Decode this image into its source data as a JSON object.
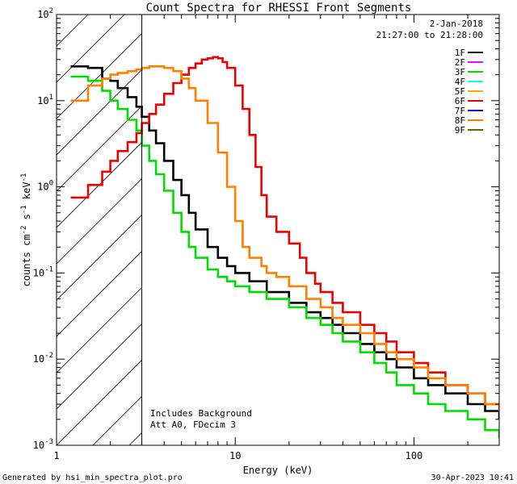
{
  "chart_data": {
    "type": "line",
    "title": "Count Spectra for RHESSI Front Segments",
    "xlabel": "Energy (keV)",
    "ylabel_base": "counts cm",
    "ylabel_exp1": "-2",
    "ylabel_mid": " s",
    "ylabel_exp2": "-1",
    "ylabel_end": " keV",
    "ylabel_exp3": "-1",
    "xscale": "log",
    "yscale": "log",
    "xlim": [
      1,
      300
    ],
    "ylim": [
      0.001,
      100
    ],
    "x_ticks": [
      {
        "value": 1,
        "label": "1"
      },
      {
        "value": 10,
        "label": "10"
      },
      {
        "value": 100,
        "label": "100"
      }
    ],
    "y_ticks": [
      {
        "value": 100,
        "base": "10",
        "exp": "2"
      },
      {
        "value": 10,
        "base": "10",
        "exp": "1"
      },
      {
        "value": 1,
        "base": "10",
        "exp": "0"
      },
      {
        "value": 0.1,
        "base": "10",
        "exp": "-1"
      },
      {
        "value": 0.01,
        "base": "10",
        "exp": "-2"
      },
      {
        "value": 0.001,
        "base": "10",
        "exp": "-3"
      }
    ],
    "shaded_region_below_keV": 3,
    "legend_position": "top-right",
    "date": "2-Jan-2018",
    "time_range": "21:27:00 to 21:28:00",
    "annotations": [
      "Includes Background",
      "Att A0, FDecim 3"
    ],
    "series": [
      {
        "name": "1F",
        "color": "#000000",
        "x": [
          1.2,
          1.5,
          1.8,
          2.0,
          2.2,
          2.5,
          2.8,
          3.0,
          3.3,
          3.6,
          4.0,
          4.5,
          5.0,
          5.5,
          6.0,
          7.0,
          8.0,
          9.0,
          10,
          12,
          15,
          20,
          25,
          30,
          35,
          40,
          50,
          60,
          70,
          80,
          100,
          120,
          150,
          200,
          250,
          300
        ],
        "y": [
          25,
          24,
          18,
          17,
          14,
          11,
          8.5,
          6.5,
          4.5,
          3.2,
          2.0,
          1.2,
          0.8,
          0.5,
          0.32,
          0.2,
          0.15,
          0.12,
          0.1,
          0.08,
          0.06,
          0.045,
          0.035,
          0.03,
          0.025,
          0.02,
          0.015,
          0.012,
          0.01,
          0.008,
          0.006,
          0.005,
          0.004,
          0.003,
          0.0025,
          0.002
        ]
      },
      {
        "name": "2F",
        "color": "#ff00ff",
        "x": [],
        "y": []
      },
      {
        "name": "3F",
        "color": "#00dd00",
        "x": [
          1.2,
          1.5,
          1.8,
          2.0,
          2.2,
          2.5,
          2.8,
          3.0,
          3.3,
          3.6,
          4.0,
          4.5,
          5.0,
          5.5,
          6.0,
          7.0,
          8.0,
          9.0,
          10,
          12,
          15,
          20,
          25,
          30,
          35,
          40,
          50,
          60,
          70,
          80,
          100,
          120,
          150,
          200,
          250,
          300
        ],
        "y": [
          19,
          17,
          13,
          10,
          8,
          6,
          4.5,
          3,
          2.0,
          1.4,
          0.9,
          0.5,
          0.3,
          0.2,
          0.15,
          0.11,
          0.09,
          0.08,
          0.07,
          0.06,
          0.05,
          0.04,
          0.03,
          0.025,
          0.02,
          0.016,
          0.012,
          0.009,
          0.007,
          0.005,
          0.004,
          0.003,
          0.0025,
          0.002,
          0.0015,
          0.0012
        ]
      },
      {
        "name": "4F",
        "color": "#00ffff",
        "x": [],
        "y": []
      },
      {
        "name": "5F",
        "color": "#ffaa00",
        "x": [],
        "y": []
      },
      {
        "name": "6F",
        "color": "#ee0000",
        "x": [
          1.2,
          1.5,
          1.8,
          2.0,
          2.2,
          2.5,
          2.8,
          3.0,
          3.3,
          3.6,
          4.0,
          4.5,
          5.0,
          5.5,
          6.0,
          6.5,
          7.0,
          7.5,
          8.0,
          8.5,
          9.0,
          10,
          11,
          12,
          13,
          14,
          15,
          17,
          20,
          23,
          25,
          28,
          30,
          35,
          40,
          50,
          60,
          70,
          80,
          100,
          120,
          150,
          200,
          250,
          300
        ],
        "y": [
          0.75,
          1.05,
          1.5,
          2.0,
          2.6,
          3.3,
          4.2,
          5.5,
          7,
          9,
          12,
          16,
          20,
          24,
          27,
          30,
          31,
          32,
          31,
          28,
          24,
          15,
          8,
          4,
          1.7,
          0.8,
          0.45,
          0.3,
          0.22,
          0.15,
          0.1,
          0.075,
          0.06,
          0.045,
          0.035,
          0.025,
          0.02,
          0.016,
          0.012,
          0.009,
          0.007,
          0.005,
          0.004,
          0.003,
          0.0025
        ]
      },
      {
        "name": "7F",
        "color": "#0000cc",
        "x": [],
        "y": []
      },
      {
        "name": "8F",
        "color": "#ff8000",
        "x": [
          1.2,
          1.5,
          1.8,
          2.0,
          2.2,
          2.5,
          2.8,
          3.0,
          3.3,
          3.6,
          4.0,
          4.5,
          5.0,
          5.5,
          6.0,
          7.0,
          8.0,
          9.0,
          10,
          11,
          12,
          14,
          15,
          17,
          20,
          25,
          30,
          35,
          40,
          50,
          60,
          70,
          80,
          100,
          120,
          150,
          200,
          250,
          300
        ],
        "y": [
          10,
          15,
          18,
          20,
          21,
          22,
          23,
          24,
          25,
          25,
          24,
          22,
          18,
          14,
          10,
          5.5,
          2.5,
          1.0,
          0.4,
          0.2,
          0.15,
          0.12,
          0.1,
          0.09,
          0.07,
          0.05,
          0.04,
          0.03,
          0.025,
          0.02,
          0.015,
          0.012,
          0.01,
          0.008,
          0.006,
          0.005,
          0.004,
          0.003,
          0.0025
        ]
      },
      {
        "name": "9F",
        "color": "#666600",
        "x": [],
        "y": []
      }
    ]
  },
  "footer": {
    "generated_by": "Generated by hsi_min_spectra_plot.pro",
    "timestamp": "30-Apr-2023 10:41"
  }
}
